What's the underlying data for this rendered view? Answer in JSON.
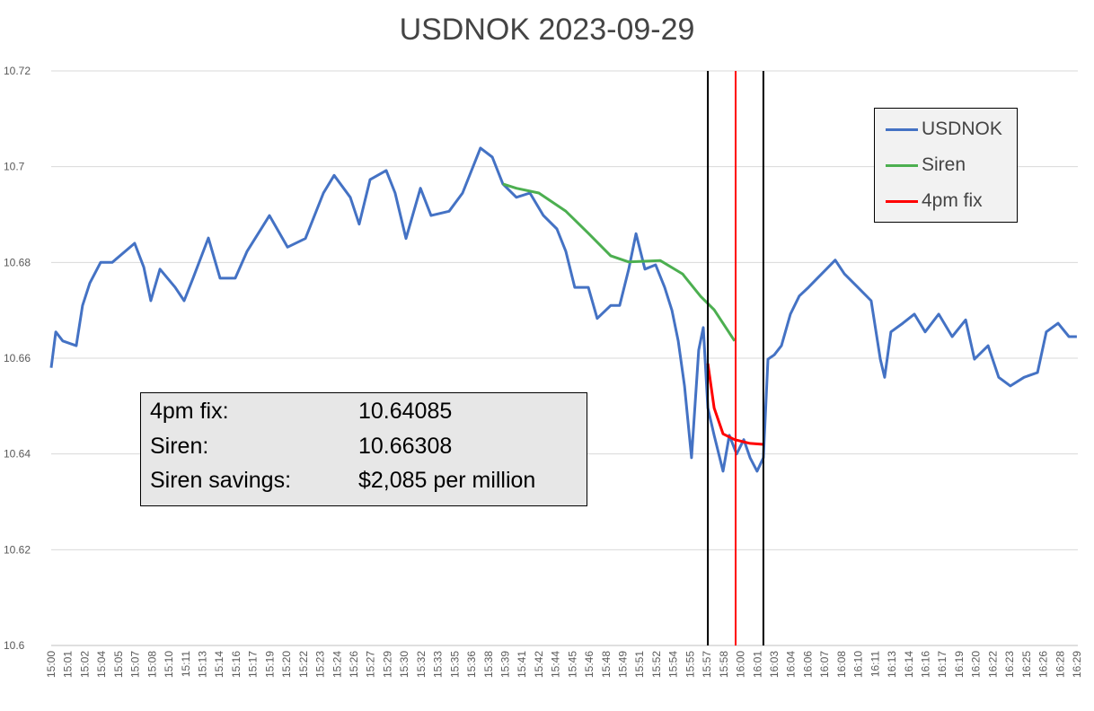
{
  "chart_data": {
    "type": "line",
    "title": "USDNOK 2023-09-29",
    "xlabel": "",
    "ylabel": "",
    "ylim": [
      10.6,
      10.72
    ],
    "y_ticks": [
      "10.6",
      "10.62",
      "10.64",
      "10.66",
      "10.68",
      "10.7",
      "10.72"
    ],
    "x_range": [
      "15:00:00",
      "16:30:00"
    ],
    "x_ticks": [
      "15:00",
      "15:01",
      "15:02",
      "15:04",
      "15:05",
      "15:07",
      "15:08",
      "15:10",
      "15:11",
      "15:13",
      "15:14",
      "15:16",
      "15:17",
      "15:19",
      "15:20",
      "15:22",
      "15:23",
      "15:24",
      "15:26",
      "15:27",
      "15:29",
      "15:30",
      "15:32",
      "15:33",
      "15:35",
      "15:36",
      "15:38",
      "15:39",
      "15:41",
      "15:42",
      "15:44",
      "15:45",
      "15:46",
      "15:48",
      "15:49",
      "15:51",
      "15:52",
      "15:54",
      "15:55",
      "15:57",
      "15:58",
      "16:00",
      "16:01",
      "16:03",
      "16:04",
      "16:06",
      "16:07",
      "16:08",
      "16:10",
      "16:11",
      "16:13",
      "16:14",
      "16:16",
      "16:17",
      "16:19",
      "16:20",
      "16:22",
      "16:23",
      "16:25",
      "16:26",
      "16:28",
      "16:29"
    ],
    "grid": "horizontal",
    "legend_position": "top-right",
    "series": [
      {
        "name": "USDNOK",
        "color": "#4472c4",
        "points": [
          [
            "15:00:00",
            10.658
          ],
          [
            "15:00:24",
            10.6655
          ],
          [
            "15:01:01",
            10.6636
          ],
          [
            "15:02:12",
            10.6626
          ],
          [
            "15:02:45",
            10.671
          ],
          [
            "15:03:23",
            10.6757
          ],
          [
            "15:04:20",
            10.68
          ],
          [
            "15:05:21",
            10.68
          ],
          [
            "15:07:19",
            10.684
          ],
          [
            "15:08:07",
            10.679
          ],
          [
            "15:08:44",
            10.672
          ],
          [
            "15:09:32",
            10.6786
          ],
          [
            "15:10:52",
            10.6748
          ],
          [
            "15:11:39",
            10.672
          ],
          [
            "15:12:26",
            10.6767
          ],
          [
            "15:13:47",
            10.6851
          ],
          [
            "15:14:48",
            10.6767
          ],
          [
            "15:16:08",
            10.6767
          ],
          [
            "15:17:10",
            10.6823
          ],
          [
            "15:19:08",
            10.6898
          ],
          [
            "15:20:43",
            10.6832
          ],
          [
            "15:22:17",
            10.685
          ],
          [
            "15:23:52",
            10.6945
          ],
          [
            "15:24:48",
            10.6982
          ],
          [
            "15:26:13",
            10.6936
          ],
          [
            "15:27:00",
            10.688
          ],
          [
            "15:27:57",
            10.6973
          ],
          [
            "15:29:22",
            10.6992
          ],
          [
            "15:30:09",
            10.6945
          ],
          [
            "15:31:06",
            10.685
          ],
          [
            "15:32:22",
            10.6955
          ],
          [
            "15:33:18",
            10.6898
          ],
          [
            "15:34:53",
            10.6907
          ],
          [
            "15:36:04",
            10.6945
          ],
          [
            "15:37:38",
            10.7039
          ],
          [
            "15:38:40",
            10.702
          ],
          [
            "15:39:36",
            10.6964
          ],
          [
            "15:40:47",
            10.6936
          ],
          [
            "15:41:58",
            10.6945
          ],
          [
            "15:43:09",
            10.6898
          ],
          [
            "15:44:20",
            10.687
          ],
          [
            "15:45:07",
            10.6823
          ],
          [
            "15:45:54",
            10.6748
          ],
          [
            "15:47:05",
            10.6748
          ],
          [
            "15:47:52",
            10.6683
          ],
          [
            "15:49:03",
            10.671
          ],
          [
            "15:49:50",
            10.671
          ],
          [
            "15:50:38",
            10.6786
          ],
          [
            "15:51:16",
            10.686
          ],
          [
            "15:52:03",
            10.6786
          ],
          [
            "15:52:59",
            10.6795
          ],
          [
            "15:53:47",
            10.6748
          ],
          [
            "15:54:25",
            10.67
          ],
          [
            "15:54:58",
            10.6636
          ],
          [
            "15:55:31",
            10.6542
          ],
          [
            "15:56:08",
            10.6392
          ],
          [
            "15:56:46",
            10.6617
          ],
          [
            "15:57:10",
            10.6664
          ],
          [
            "15:57:34",
            10.6496
          ],
          [
            "15:58:07",
            10.6439
          ],
          [
            "15:58:54",
            10.6364
          ],
          [
            "15:59:27",
            10.6439
          ],
          [
            "16:00:05",
            10.64
          ],
          [
            "16:00:43",
            10.643
          ],
          [
            "16:01:16",
            10.6392
          ],
          [
            "16:01:53",
            10.6364
          ],
          [
            "16:02:26",
            10.6392
          ],
          [
            "16:02:50",
            10.6598
          ],
          [
            "16:03:23",
            10.6607
          ],
          [
            "16:04:01",
            10.6626
          ],
          [
            "16:04:48",
            10.6692
          ],
          [
            "16:05:35",
            10.673
          ],
          [
            "16:06:23",
            10.6748
          ],
          [
            "16:07:10",
            10.6767
          ],
          [
            "16:07:57",
            10.6786
          ],
          [
            "16:08:44",
            10.6805
          ],
          [
            "16:09:32",
            10.6776
          ],
          [
            "16:10:43",
            10.6748
          ],
          [
            "16:11:53",
            10.672
          ],
          [
            "16:12:41",
            10.6598
          ],
          [
            "16:13:04",
            10.656
          ],
          [
            "16:13:37",
            10.6655
          ],
          [
            "16:14:39",
            10.6673
          ],
          [
            "16:15:40",
            10.6692
          ],
          [
            "16:16:37",
            10.6655
          ],
          [
            "16:17:48",
            10.6692
          ],
          [
            "16:18:59",
            10.6645
          ],
          [
            "16:20:10",
            10.668
          ],
          [
            "16:20:56",
            10.6598
          ],
          [
            "16:22:08",
            10.6626
          ],
          [
            "16:23:04",
            10.656
          ],
          [
            "16:24:05",
            10.6542
          ],
          [
            "16:25:17",
            10.656
          ],
          [
            "16:26:28",
            10.657
          ],
          [
            "16:27:14",
            10.6655
          ],
          [
            "16:28:16",
            10.6673
          ],
          [
            "16:29:13",
            10.6645
          ],
          [
            "16:29:55",
            10.6645
          ]
        ]
      },
      {
        "name": "Siren",
        "color": "#4caf50",
        "points": [
          [
            "15:39:36",
            10.6964
          ],
          [
            "15:40:47",
            10.6955
          ],
          [
            "15:42:45",
            10.6945
          ],
          [
            "15:45:07",
            10.6907
          ],
          [
            "15:47:05",
            10.6861
          ],
          [
            "15:49:03",
            10.6814
          ],
          [
            "15:50:38",
            10.6801
          ],
          [
            "15:53:23",
            10.6804
          ],
          [
            "15:55:21",
            10.6776
          ],
          [
            "15:56:56",
            10.6729
          ],
          [
            "15:58:07",
            10.6701
          ],
          [
            "15:59:55",
            10.6636
          ]
        ]
      },
      {
        "name": "4pm fix",
        "color": "#ff0000",
        "points": [
          [
            "15:57:34",
            10.6589
          ],
          [
            "15:58:07",
            10.6496
          ],
          [
            "15:58:54",
            10.6442
          ],
          [
            "15:59:55",
            10.643
          ],
          [
            "16:01:16",
            10.6422
          ],
          [
            "16:02:26",
            10.642
          ]
        ]
      }
    ],
    "vertical_lines": [
      {
        "x": "15:57:34",
        "color": "#000000"
      },
      {
        "x": "16:00:00",
        "color": "#ff0000"
      },
      {
        "x": "16:02:26",
        "color": "#000000"
      }
    ],
    "annotation": {
      "rows": [
        {
          "label": "4pm fix:",
          "value": "10.64085"
        },
        {
          "label": "Siren:",
          "value": "10.66308"
        },
        {
          "label": "Siren savings:",
          "value": "$2,085 per million"
        }
      ]
    }
  }
}
